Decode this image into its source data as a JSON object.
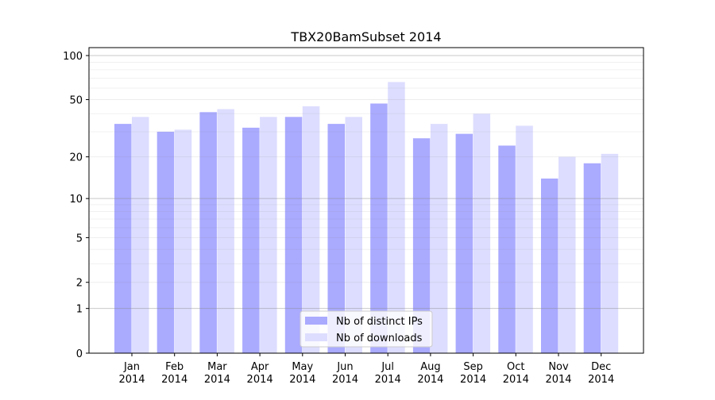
{
  "chart_data": {
    "type": "bar",
    "title": "TBX20BamSubset 2014",
    "xlabel": "",
    "ylabel": "",
    "yscale": "log(1+y)",
    "ylim": [
      0,
      100
    ],
    "yticks": [
      0,
      1,
      2,
      5,
      10,
      20,
      50,
      100
    ],
    "grid": true,
    "legend_placement": "lower center",
    "categories": [
      "Jan\n2014",
      "Feb\n2014",
      "Mar\n2014",
      "Apr\n2014",
      "May\n2014",
      "Jun\n2014",
      "Jul\n2014",
      "Aug\n2014",
      "Sep\n2014",
      "Oct\n2014",
      "Nov\n2014",
      "Dec\n2014"
    ],
    "series": [
      {
        "name": "Nb of distinct IPs",
        "color": "#aaaaff",
        "values": [
          34,
          30,
          41,
          32,
          38,
          34,
          47,
          27,
          29,
          24,
          14,
          18
        ]
      },
      {
        "name": "Nb of downloads",
        "color": "#ddddff",
        "values": [
          38,
          31,
          43,
          38,
          45,
          38,
          66,
          34,
          40,
          33,
          20,
          21
        ]
      }
    ]
  }
}
